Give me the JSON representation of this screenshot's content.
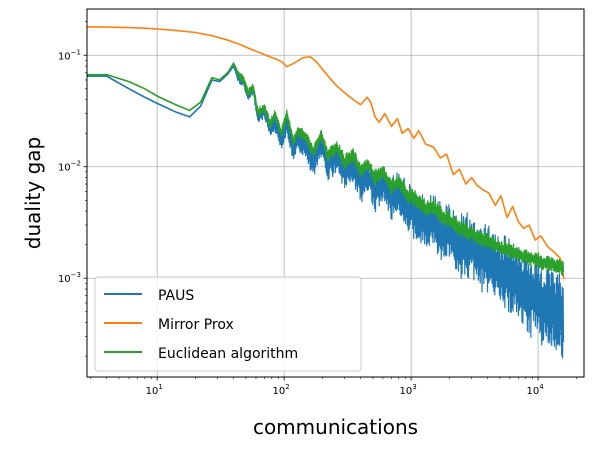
{
  "chart_data": {
    "type": "line",
    "xlabel": "communications",
    "ylabel": "duality gap",
    "xscale": "log",
    "yscale": "log",
    "xlim": [
      2.8,
      23000
    ],
    "ylim": [
      0.00013,
      0.26
    ],
    "grid": true,
    "legend_position": "lower-left",
    "x_ticks": [
      {
        "value": 10,
        "base": "10",
        "exp": "1"
      },
      {
        "value": 100,
        "base": "10",
        "exp": "2"
      },
      {
        "value": 1000,
        "base": "10",
        "exp": "3"
      },
      {
        "value": 10000,
        "base": "10",
        "exp": "4"
      }
    ],
    "y_ticks": [
      {
        "value": 0.001,
        "base": "10",
        "exp": "−3"
      },
      {
        "value": 0.01,
        "base": "10",
        "exp": "−2"
      },
      {
        "value": 0.1,
        "base": "10",
        "exp": "−1"
      }
    ],
    "series": [
      {
        "name": "PAUS",
        "color": "#1f77b4",
        "x": [
          2.8,
          4,
          6,
          8,
          10,
          14,
          18,
          22,
          27,
          31,
          36,
          40,
          43,
          48,
          52,
          57,
          62,
          70,
          78,
          85,
          95,
          105,
          118,
          130,
          150,
          170,
          195,
          220,
          260,
          300,
          350,
          400,
          460,
          520,
          600,
          700,
          800,
          950,
          1100,
          1300,
          1500,
          1800,
          2100,
          2500,
          3000,
          3500,
          4200,
          5000,
          6000,
          7000,
          8500,
          10000,
          12000,
          14000,
          16000
        ],
        "y": [
          0.065,
          0.065,
          0.05,
          0.042,
          0.037,
          0.031,
          0.028,
          0.035,
          0.06,
          0.058,
          0.068,
          0.08,
          0.065,
          0.058,
          0.042,
          0.05,
          0.028,
          0.032,
          0.022,
          0.026,
          0.018,
          0.028,
          0.015,
          0.02,
          0.016,
          0.012,
          0.018,
          0.011,
          0.013,
          0.009,
          0.011,
          0.007,
          0.0085,
          0.006,
          0.0075,
          0.005,
          0.0055,
          0.0042,
          0.0035,
          0.0028,
          0.0032,
          0.0022,
          0.0025,
          0.0016,
          0.0018,
          0.0013,
          0.0012,
          0.0009,
          0.00085,
          0.0007,
          0.00055,
          0.0005,
          0.00038,
          0.00035,
          0.0003
        ],
        "upper": [
          0.065,
          0.065,
          0.05,
          0.042,
          0.037,
          0.031,
          0.028,
          0.035,
          0.06,
          0.058,
          0.068,
          0.08,
          0.07,
          0.065,
          0.048,
          0.055,
          0.032,
          0.036,
          0.026,
          0.03,
          0.021,
          0.032,
          0.018,
          0.024,
          0.02,
          0.016,
          0.022,
          0.015,
          0.017,
          0.013,
          0.015,
          0.011,
          0.012,
          0.0095,
          0.011,
          0.0085,
          0.009,
          0.0072,
          0.0063,
          0.0055,
          0.0058,
          0.0045,
          0.0048,
          0.0038,
          0.004,
          0.0033,
          0.0031,
          0.0026,
          0.0024,
          0.0021,
          0.0018,
          0.0016,
          0.00135,
          0.00125,
          0.0011
        ],
        "lower": [
          0.065,
          0.065,
          0.05,
          0.042,
          0.037,
          0.031,
          0.028,
          0.035,
          0.06,
          0.058,
          0.068,
          0.08,
          0.058,
          0.052,
          0.038,
          0.045,
          0.024,
          0.027,
          0.018,
          0.02,
          0.014,
          0.02,
          0.011,
          0.014,
          0.011,
          0.008,
          0.012,
          0.0075,
          0.0085,
          0.0062,
          0.0072,
          0.0046,
          0.0055,
          0.0039,
          0.0047,
          0.0032,
          0.0035,
          0.0026,
          0.0021,
          0.0017,
          0.0019,
          0.0013,
          0.0014,
          0.00092,
          0.001,
          0.00074,
          0.00068,
          0.0005,
          0.00046,
          0.00038,
          0.0003,
          0.00027,
          0.00022,
          0.0002,
          0.00019
        ]
      },
      {
        "name": "Mirror Prox",
        "color": "#ff7f0e",
        "x": [
          2.8,
          4,
          6,
          8,
          10,
          14,
          20,
          27,
          35,
          45,
          55,
          65,
          75,
          85,
          95,
          105,
          120,
          140,
          160,
          180,
          200,
          230,
          260,
          300,
          350,
          400,
          450,
          480,
          520,
          560,
          620,
          700,
          780,
          850,
          950,
          1050,
          1150,
          1300,
          1500,
          1700,
          1900,
          2150,
          2400,
          2700,
          3000,
          3300,
          3700,
          4100,
          4600,
          5100,
          5700,
          6300,
          7000,
          7700,
          8500,
          9500,
          10500,
          12000,
          13500,
          15000,
          16000
        ],
        "y": [
          0.18,
          0.179,
          0.177,
          0.175,
          0.172,
          0.167,
          0.16,
          0.15,
          0.138,
          0.125,
          0.113,
          0.105,
          0.098,
          0.093,
          0.088,
          0.079,
          0.085,
          0.095,
          0.097,
          0.087,
          0.075,
          0.062,
          0.053,
          0.046,
          0.04,
          0.036,
          0.042,
          0.038,
          0.028,
          0.025,
          0.03,
          0.023,
          0.027,
          0.02,
          0.022,
          0.018,
          0.021,
          0.016,
          0.015,
          0.012,
          0.013,
          0.0085,
          0.0095,
          0.007,
          0.008,
          0.0068,
          0.0062,
          0.0058,
          0.0045,
          0.0055,
          0.0035,
          0.0044,
          0.0032,
          0.0028,
          0.003,
          0.0022,
          0.0024,
          0.0019,
          0.0017,
          0.0015,
          0.00098
        ]
      },
      {
        "name": "Euclidean algorithm",
        "color": "#2ca02c",
        "x": [
          2.8,
          4,
          6,
          8,
          10,
          14,
          18,
          22,
          27,
          31,
          36,
          40,
          43,
          48,
          52,
          57,
          62,
          70,
          78,
          85,
          95,
          105,
          118,
          130,
          150,
          170,
          195,
          220,
          260,
          300,
          350,
          400,
          460,
          520,
          600,
          700,
          800,
          950,
          1100,
          1300,
          1500,
          1800,
          2100,
          2500,
          3000,
          3500,
          4200,
          5000,
          6000,
          7000,
          8500,
          10000,
          12000,
          14000,
          16000
        ],
        "y": [
          0.067,
          0.067,
          0.058,
          0.05,
          0.043,
          0.036,
          0.032,
          0.038,
          0.063,
          0.06,
          0.07,
          0.085,
          0.07,
          0.06,
          0.045,
          0.052,
          0.03,
          0.034,
          0.024,
          0.03,
          0.02,
          0.03,
          0.017,
          0.022,
          0.018,
          0.014,
          0.02,
          0.013,
          0.015,
          0.011,
          0.013,
          0.0095,
          0.011,
          0.008,
          0.0095,
          0.0065,
          0.0075,
          0.0055,
          0.0052,
          0.0042,
          0.0045,
          0.0035,
          0.0033,
          0.0028,
          0.0025,
          0.0023,
          0.0021,
          0.0019,
          0.0018,
          0.0016,
          0.0015,
          0.0014,
          0.0013,
          0.0013,
          0.00125
        ],
        "upper": [
          0.067,
          0.067,
          0.058,
          0.05,
          0.043,
          0.036,
          0.032,
          0.038,
          0.063,
          0.06,
          0.07,
          0.085,
          0.075,
          0.065,
          0.05,
          0.056,
          0.034,
          0.037,
          0.027,
          0.033,
          0.022,
          0.033,
          0.019,
          0.024,
          0.02,
          0.016,
          0.022,
          0.015,
          0.017,
          0.013,
          0.015,
          0.011,
          0.012,
          0.0095,
          0.0105,
          0.0078,
          0.0085,
          0.0065,
          0.0062,
          0.005,
          0.0052,
          0.0042,
          0.0039,
          0.0033,
          0.003,
          0.0027,
          0.0025,
          0.0022,
          0.0021,
          0.0019,
          0.0018,
          0.0017,
          0.0016,
          0.0015,
          0.0015
        ],
        "lower": [
          0.067,
          0.067,
          0.058,
          0.05,
          0.043,
          0.036,
          0.032,
          0.038,
          0.063,
          0.06,
          0.07,
          0.085,
          0.065,
          0.055,
          0.041,
          0.048,
          0.027,
          0.031,
          0.021,
          0.027,
          0.018,
          0.027,
          0.015,
          0.019,
          0.016,
          0.012,
          0.017,
          0.011,
          0.013,
          0.0092,
          0.011,
          0.0078,
          0.0092,
          0.0066,
          0.0078,
          0.0055,
          0.0063,
          0.0046,
          0.0043,
          0.0035,
          0.0037,
          0.0029,
          0.0027,
          0.0023,
          0.0021,
          0.0019,
          0.00175,
          0.0016,
          0.0015,
          0.0014,
          0.0013,
          0.0012,
          0.00115,
          0.0011,
          0.00105
        ]
      }
    ]
  }
}
